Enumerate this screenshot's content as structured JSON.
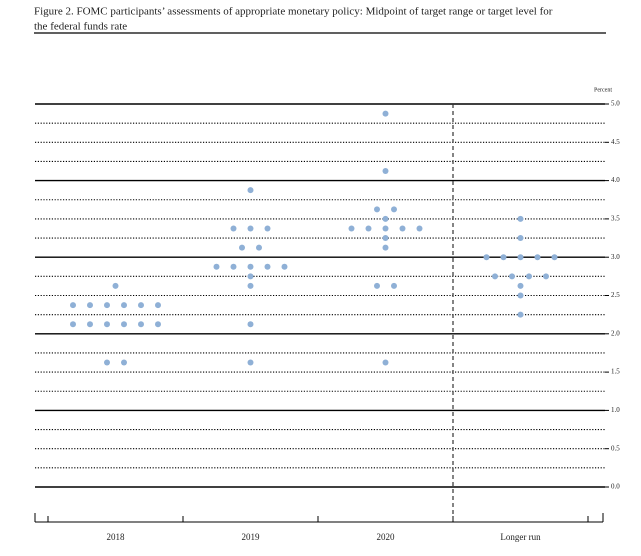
{
  "chart_data": {
    "type": "dotplot",
    "title": "Figure 2. FOMC participants’ assessments of appropriate monetary policy: Midpoint of target range or target level for",
    "subtitle": "the federal funds rate",
    "y_axis_label": "Percent",
    "categories": [
      "2018",
      "2019",
      "2020",
      "Longer run"
    ],
    "color": "#8fb0d6",
    "values": [
      [
        2.625,
        2.375,
        2.375,
        2.375,
        2.375,
        2.375,
        2.375,
        2.125,
        2.125,
        2.125,
        2.125,
        2.125,
        2.125,
        1.625,
        1.625
      ],
      [
        3.875,
        3.375,
        3.375,
        3.375,
        3.125,
        3.125,
        2.875,
        2.875,
        2.875,
        2.875,
        2.875,
        2.75,
        2.625,
        2.125,
        1.625
      ],
      [
        4.875,
        4.125,
        3.625,
        3.625,
        3.5,
        3.375,
        3.375,
        3.375,
        3.375,
        3.375,
        3.25,
        3.125,
        2.625,
        2.625,
        1.625
      ],
      [
        3.5,
        3.25,
        3.0,
        3.0,
        3.0,
        3.0,
        3.0,
        2.75,
        2.75,
        2.75,
        2.75,
        2.625,
        2.5,
        2.25
      ]
    ],
    "ylim": [
      0,
      5
    ],
    "yticks": [
      {
        "value": 0,
        "label": "0.0"
      },
      {
        "value": 0.5,
        "label": "0.5"
      },
      {
        "value": 1,
        "label": "1.0"
      },
      {
        "value": 1.5,
        "label": "1.5"
      },
      {
        "value": 2,
        "label": "2.0"
      },
      {
        "value": 2.5,
        "label": "2.5"
      },
      {
        "value": 3,
        "label": "3.0"
      },
      {
        "value": 3.5,
        "label": "3.5"
      },
      {
        "value": 4,
        "label": "4.0"
      },
      {
        "value": 4.5,
        "label": "4.5"
      },
      {
        "value": 5,
        "label": "5.0"
      }
    ],
    "minor_yticks": [
      0.25,
      0.75,
      1.25,
      1.75,
      2.25,
      2.75,
      3.25,
      3.75,
      4.25,
      4.75
    ],
    "grid": true
  }
}
